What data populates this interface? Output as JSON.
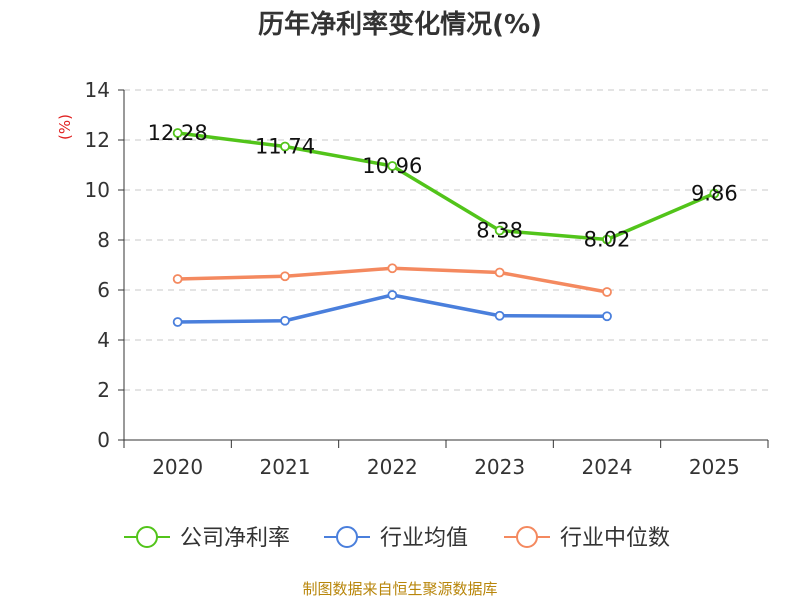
{
  "chart_data": {
    "type": "line",
    "title": "历年净利率变化情况(%)",
    "ylabel": "(%)",
    "xlabel": "",
    "categories": [
      "2020",
      "2021",
      "2022",
      "2023",
      "2024",
      "2025"
    ],
    "ylim": [
      0,
      14
    ],
    "yticks": [
      "0",
      "2",
      "4",
      "6",
      "8",
      "10",
      "12",
      "14"
    ],
    "grid": "horizontal dashed",
    "legend_position": "bottom",
    "series": [
      {
        "name": "公司净利率",
        "color": "#52c41a",
        "values": [
          12.28,
          11.74,
          10.96,
          8.38,
          8.02,
          9.86
        ],
        "labels": [
          "12.28",
          "11.74",
          "10.96",
          "8.38",
          "8.02",
          "9.86"
        ]
      },
      {
        "name": "行业均值",
        "color": "#4a7fdc",
        "values": [
          4.72,
          4.77,
          5.8,
          4.97,
          4.95,
          null
        ]
      },
      {
        "name": "行业中位数",
        "color": "#f4895f",
        "values": [
          6.44,
          6.55,
          6.87,
          6.7,
          5.92,
          null
        ]
      }
    ]
  },
  "footer": {
    "source": "制图数据来自恒生聚源数据库"
  }
}
